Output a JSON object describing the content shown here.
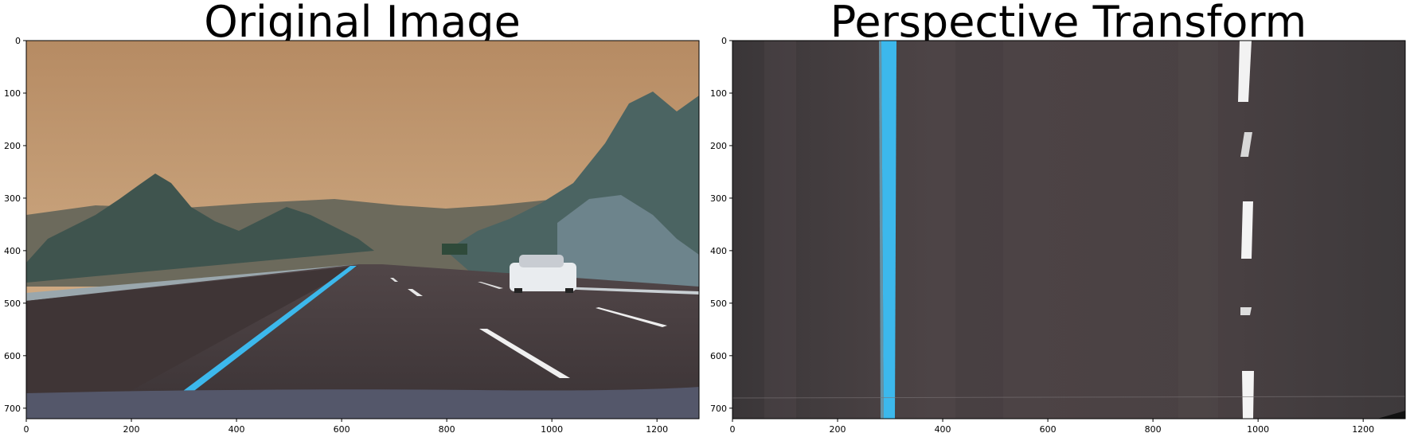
{
  "panels": [
    {
      "id": "left",
      "title": "Original Image",
      "x_ticks": [
        0,
        200,
        400,
        600,
        800,
        1000,
        1200
      ],
      "y_ticks": [
        0,
        100,
        200,
        300,
        400,
        500,
        600,
        700
      ],
      "x_range": [
        0,
        1280
      ],
      "y_range": [
        0,
        720
      ]
    },
    {
      "id": "right",
      "title": "Perspective Transform",
      "x_ticks": [
        0,
        200,
        400,
        600,
        800,
        1000,
        1200
      ],
      "y_ticks": [
        0,
        100,
        200,
        300,
        400,
        500,
        600,
        700
      ],
      "x_range": [
        0,
        1280
      ],
      "y_range": [
        0,
        720
      ]
    }
  ],
  "colors": {
    "sky": "#c8a07a",
    "road": "#4a4244",
    "lane_blue": "#3cb8ec",
    "lane_white": "#f0f0f0",
    "trees": "#41574f"
  }
}
